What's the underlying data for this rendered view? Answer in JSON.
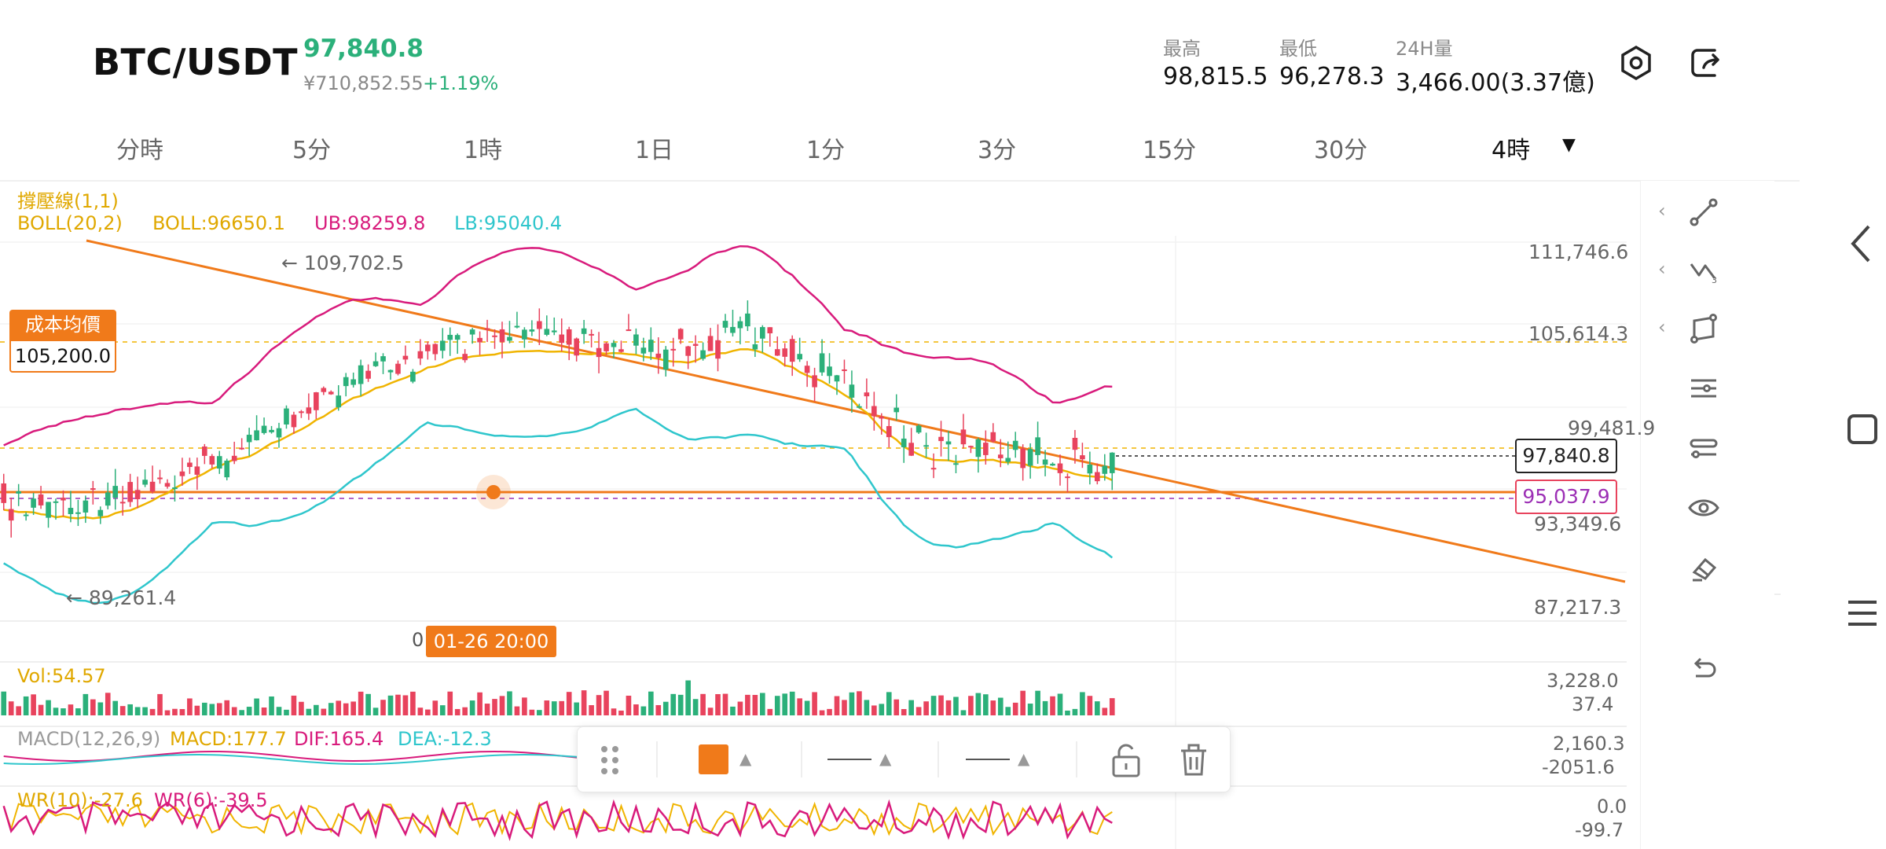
{
  "header": {
    "pair": "BTC/USDT",
    "last_price": "97,840.8",
    "cny_price": "¥710,852.55",
    "change_pct": "+1.19%",
    "stats": [
      {
        "label": "最高",
        "value": "98,815.5"
      },
      {
        "label": "最低",
        "value": "96,278.3"
      },
      {
        "label": "24H量",
        "value": "3,466.00(3.37億)"
      }
    ],
    "icons": [
      "settings-hex-icon",
      "share-exit-icon"
    ]
  },
  "timeframes": {
    "items": [
      "分時",
      "5分",
      "1時",
      "1日",
      "1分",
      "3分",
      "15分",
      "30分",
      "4時"
    ],
    "active": "4時"
  },
  "main_chart": {
    "indicator_line1": "撐壓線(1,1)",
    "boll_label": "BOLL(20,2)",
    "boll_mid": "BOLL:96650.1",
    "boll_ub": "UB:98259.8",
    "boll_lb": "LB:95040.4",
    "y_ticks": [
      "111,746.6",
      "105,614.3",
      "99,481.9",
      "93,349.6",
      "87,217.3"
    ],
    "high_marker": "← 109,702.5",
    "low_marker": "← 89,261.4",
    "cost_label": "成本均價",
    "cost_value": "105,200.0",
    "current_price_tag": "97,840.8",
    "alert_price_tag": "95,037.9",
    "crosshair_time_prefix": "0",
    "crosshair_time": "01-26 20:00"
  },
  "volume": {
    "label": "Vol:54.57",
    "ticks": [
      "3,228.0",
      "37.4"
    ]
  },
  "macd": {
    "label": "MACD(12,26,9)",
    "macd": "MACD:177.7",
    "dif": "DIF:165.4",
    "dea": "DEA:-12.3",
    "ticks": [
      "2,160.3",
      "-2051.6"
    ]
  },
  "wr": {
    "label": "WR(10):-27.6",
    "label2": "WR(6):-39.5",
    "ticks": [
      "0.0",
      "-99.7"
    ]
  },
  "colors": {
    "up": "#2bb07a",
    "down": "#e8435d",
    "boll_mid": "#f0b400",
    "boll_ub": "#d81b7c",
    "boll_lb": "#2fc6cc",
    "trendline": "#f07a1a",
    "accent": "#f07a1a"
  },
  "side_tools": [
    "trendline-icon",
    "wave-icon",
    "rectangle-icon",
    "parallel-lines-icon",
    "ray-icon",
    "eye-icon",
    "eraser-icon",
    "undo-icon"
  ],
  "draw_toolbar": [
    "drag-handle-icon",
    "color-swatch",
    "line-style",
    "line-width",
    "unlock-icon",
    "trash-icon"
  ],
  "android_nav": [
    "back-icon",
    "home-icon",
    "recents-icon"
  ]
}
